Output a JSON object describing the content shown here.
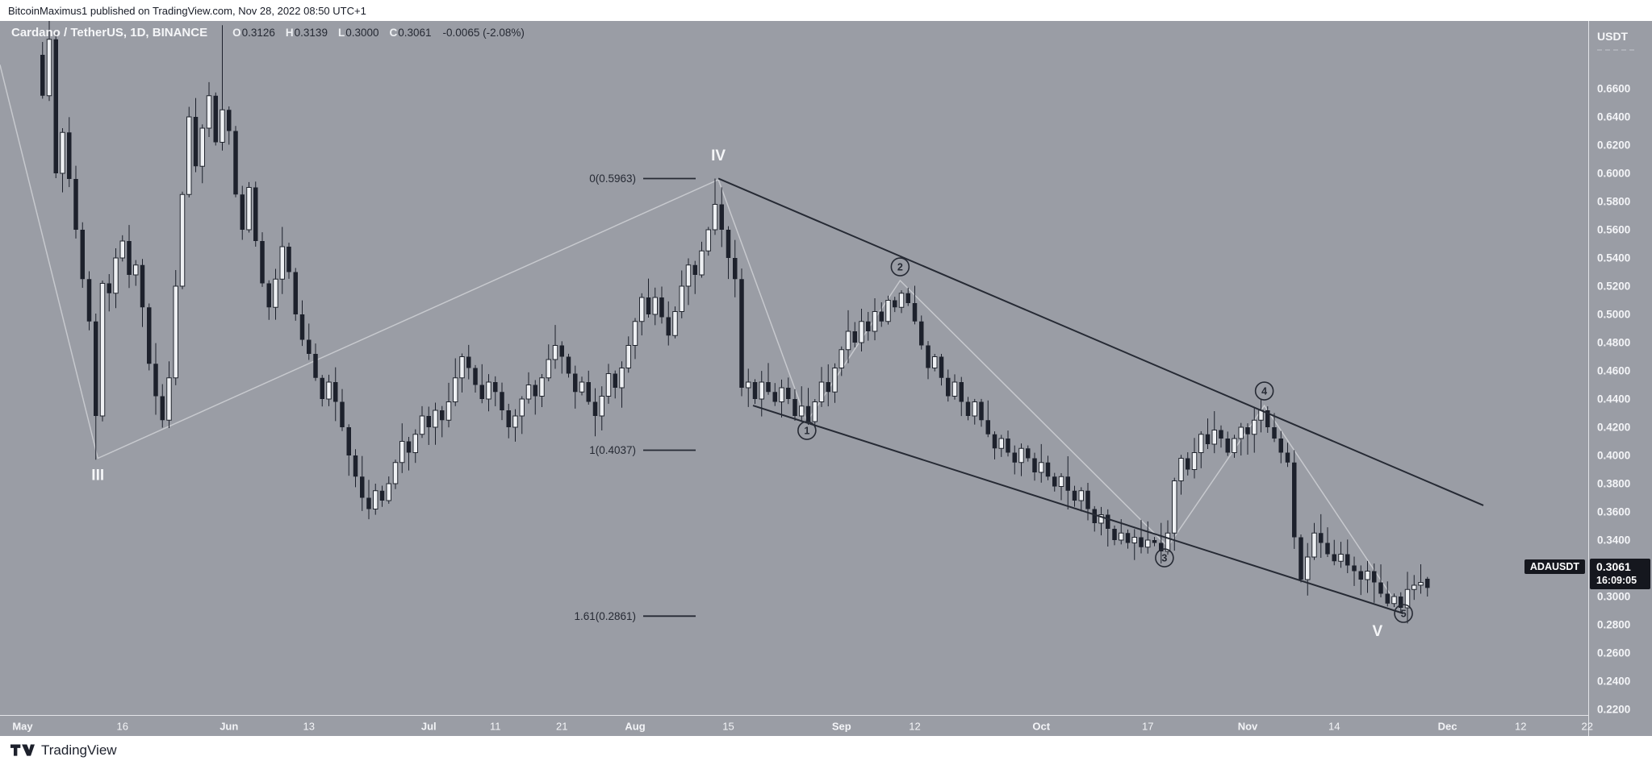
{
  "top_bar": {
    "text": "BitcoinMaximus1 published on TradingView.com, Nov 28, 2022 08:50 UTC+1"
  },
  "chart_header": {
    "title": "Cardano / TetherUS, 1D, BINANCE",
    "open_label": "O",
    "open": "0.3126",
    "high_label": "H",
    "high": "0.3139",
    "low_label": "L",
    "low": "0.3000",
    "close_label": "C",
    "close": "0.3061",
    "change": "-0.0065 (-2.08%)"
  },
  "price_axis": {
    "currency": "USDT",
    "ticks": [
      "0.6600",
      "0.6400",
      "0.6200",
      "0.6000",
      "0.5800",
      "0.5600",
      "0.5400",
      "0.5200",
      "0.5000",
      "0.4800",
      "0.4600",
      "0.4400",
      "0.4200",
      "0.4000",
      "0.3800",
      "0.3600",
      "0.3400",
      "0.3200",
      "0.3000",
      "0.2800",
      "0.2600",
      "0.2400",
      "0.2200"
    ],
    "price_label": {
      "symbol": "ADAUSDT",
      "price": "0.3061",
      "countdown": "16:09:05"
    }
  },
  "time_axis": {
    "ticks": [
      {
        "label": "May",
        "day": 0,
        "major": true
      },
      {
        "label": "16",
        "day": 15,
        "major": false
      },
      {
        "label": "Jun",
        "day": 31,
        "major": true
      },
      {
        "label": "13",
        "day": 43,
        "major": false
      },
      {
        "label": "Jul",
        "day": 61,
        "major": true
      },
      {
        "label": "11",
        "day": 71,
        "major": false
      },
      {
        "label": "21",
        "day": 81,
        "major": false
      },
      {
        "label": "Aug",
        "day": 92,
        "major": true
      },
      {
        "label": "15",
        "day": 106,
        "major": false
      },
      {
        "label": "Sep",
        "day": 123,
        "major": true
      },
      {
        "label": "12",
        "day": 134,
        "major": false
      },
      {
        "label": "Oct",
        "day": 153,
        "major": true
      },
      {
        "label": "17",
        "day": 169,
        "major": false
      },
      {
        "label": "Nov",
        "day": 184,
        "major": true
      },
      {
        "label": "14",
        "day": 197,
        "major": false
      },
      {
        "label": "Dec",
        "day": 214,
        "major": true
      },
      {
        "label": "12",
        "day": 225,
        "major": false
      },
      {
        "label": "22",
        "day": 235,
        "major": false
      }
    ]
  },
  "footer": {
    "brand": "TradingView"
  },
  "colors": {
    "background": "#9a9da5",
    "candle_down": "#1d212c",
    "candle_up_fill": "#eef0f3",
    "candle_stroke": "#22262f",
    "drawing_dark": "#262a34",
    "zigzag_light": "#c7c9ce",
    "text_white": "#f5f6f8",
    "text_dark": "#262a34",
    "label_bg": "#15171e"
  },
  "chart_data": {
    "type": "candlestick",
    "symbol": "ADAUSDT",
    "exchange": "BINANCE",
    "timeframe": "1D",
    "y_axis": {
      "min": 0.21,
      "max": 0.675,
      "tick_step": 0.02,
      "unit": "USDT"
    },
    "x_axis": {
      "unit": "days since May 1, 2022",
      "first_candle_day": 3,
      "last_candle_day": 211
    },
    "last_ohlc": {
      "open": 0.3126,
      "high": 0.3139,
      "low": 0.3,
      "close": 0.3061,
      "change": -0.0065,
      "change_pct": -2.08
    },
    "candles": {
      "first_open": 0.684,
      "closes": [
        0.655,
        0.695,
        0.6,
        0.629,
        0.596,
        0.56,
        0.525,
        0.495,
        0.428,
        0.522,
        0.515,
        0.54,
        0.552,
        0.528,
        0.535,
        0.505,
        0.465,
        0.442,
        0.425,
        0.455,
        0.52,
        0.585,
        0.64,
        0.605,
        0.632,
        0.655,
        0.622,
        0.645,
        0.63,
        0.585,
        0.56,
        0.59,
        0.552,
        0.522,
        0.505,
        0.525,
        0.548,
        0.53,
        0.5,
        0.482,
        0.472,
        0.455,
        0.44,
        0.452,
        0.438,
        0.42,
        0.4,
        0.385,
        0.37,
        0.362,
        0.375,
        0.368,
        0.38,
        0.395,
        0.41,
        0.402,
        0.415,
        0.428,
        0.42,
        0.432,
        0.425,
        0.438,
        0.455,
        0.47,
        0.462,
        0.45,
        0.44,
        0.452,
        0.445,
        0.432,
        0.42,
        0.428,
        0.44,
        0.45,
        0.442,
        0.455,
        0.468,
        0.478,
        0.47,
        0.458,
        0.445,
        0.452,
        0.438,
        0.428,
        0.442,
        0.458,
        0.448,
        0.462,
        0.478,
        0.495,
        0.512,
        0.5,
        0.512,
        0.498,
        0.485,
        0.502,
        0.52,
        0.535,
        0.528,
        0.545,
        0.56,
        0.578,
        0.56,
        0.54,
        0.525,
        0.448,
        0.452,
        0.44,
        0.452,
        0.445,
        0.438,
        0.448,
        0.44,
        0.428,
        0.435,
        0.424,
        0.438,
        0.452,
        0.445,
        0.462,
        0.475,
        0.488,
        0.48,
        0.495,
        0.488,
        0.502,
        0.495,
        0.51,
        0.505,
        0.515,
        0.508,
        0.495,
        0.478,
        0.462,
        0.47,
        0.455,
        0.442,
        0.452,
        0.438,
        0.428,
        0.438,
        0.425,
        0.415,
        0.405,
        0.412,
        0.402,
        0.395,
        0.405,
        0.398,
        0.388,
        0.395,
        0.385,
        0.378,
        0.385,
        0.375,
        0.368,
        0.375,
        0.362,
        0.352,
        0.358,
        0.348,
        0.34,
        0.345,
        0.338,
        0.342,
        0.335,
        0.34,
        0.338,
        0.332,
        0.345,
        0.382,
        0.398,
        0.39,
        0.402,
        0.415,
        0.408,
        0.418,
        0.412,
        0.402,
        0.412,
        0.42,
        0.415,
        0.425,
        0.432,
        0.42,
        0.412,
        0.402,
        0.395,
        0.342,
        0.312,
        0.328,
        0.345,
        0.338,
        0.33,
        0.325,
        0.33,
        0.322,
        0.318,
        0.312,
        0.318,
        0.31,
        0.302,
        0.295,
        0.3,
        0.292,
        0.305,
        0.308,
        0.31,
        0.3061
      ],
      "overrides": {
        "1": {
          "high": 0.735
        },
        "8": {
          "low": 0.397
        },
        "27": {
          "high": 0.705
        },
        "101": {
          "high": 0.5963
        },
        "204": {
          "low": 0.289
        },
        "208": {
          "open": 0.3126,
          "high": 0.3139,
          "low": 0.3,
          "close": 0.3061
        }
      }
    },
    "trendlines": [
      {
        "name": "upper-channel-line",
        "d1": 104.5,
        "p1": 0.5963,
        "d2": 219.4,
        "p2": 0.3646
      },
      {
        "name": "lower-channel-line",
        "d1": 109.7,
        "p1": 0.4354,
        "d2": 207.4,
        "p2": 0.288
      }
    ],
    "zigzag": [
      {
        "d": -3.4,
        "p": 0.677
      },
      {
        "d": 11.3,
        "p": 0.398
      },
      {
        "d": 104.5,
        "p": 0.5955
      },
      {
        "d": 117.8,
        "p": 0.424
      },
      {
        "d": 131.8,
        "p": 0.524
      },
      {
        "d": 172.0,
        "p": 0.3354
      },
      {
        "d": 186.5,
        "p": 0.4354
      },
      {
        "d": 206.3,
        "p": 0.2955
      }
    ],
    "fib_levels": [
      {
        "label": "0(0.5963)",
        "price": 0.5963
      },
      {
        "label": "1(0.4037)",
        "price": 0.4037
      },
      {
        "label": "1.61(0.2861)",
        "price": 0.2861
      }
    ],
    "wave_labels": [
      {
        "text": "III",
        "d": 11.3,
        "p": 0.386
      },
      {
        "text": "IV",
        "d": 104.5,
        "p": 0.6126
      },
      {
        "text": "V",
        "d": 203.5,
        "p": 0.2755
      }
    ],
    "wave_circles": [
      {
        "text": "1",
        "d": 117.8,
        "p": 0.4177
      },
      {
        "text": "2",
        "d": 131.8,
        "p": 0.5337
      },
      {
        "text": "3",
        "d": 171.5,
        "p": 0.3274
      },
      {
        "text": "4",
        "d": 186.5,
        "p": 0.4457
      },
      {
        "text": "5",
        "d": 207.4,
        "p": 0.288
      }
    ]
  }
}
